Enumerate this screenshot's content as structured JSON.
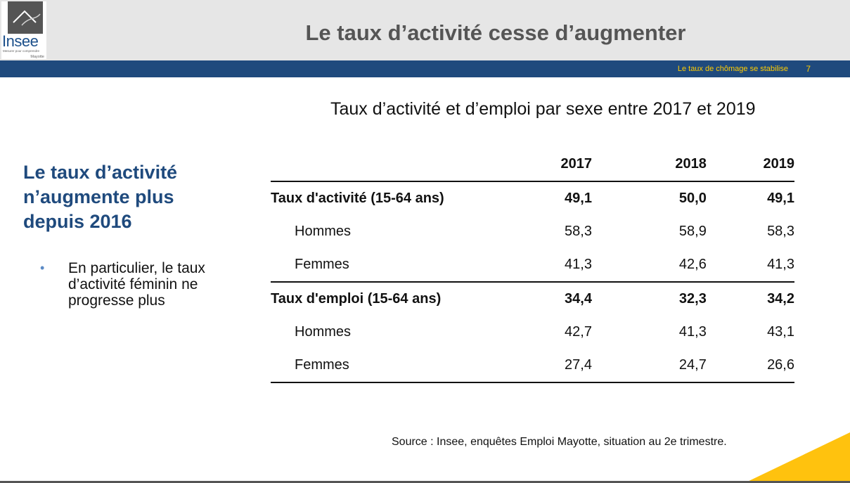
{
  "header": {
    "logo_text": "Insee",
    "logo_tagline": "Mesurer pour comprendre",
    "logo_region": "Mayotte",
    "title": "Le taux d’activité cesse d’augmenter"
  },
  "nav": {
    "section": "Le taux de chômage se stabilise",
    "page_number": "7"
  },
  "left": {
    "heading": "Le taux d’activité n’augmente plus depuis 2016",
    "bullet": "En particulier, le taux d’activité féminin ne progresse plus"
  },
  "table": {
    "title": "Taux d’activité et d’emploi par sexe entre 2017 et 2019",
    "columns": [
      "2017",
      "2018",
      "2019"
    ],
    "rows": [
      {
        "label": "Taux d'activité (15-64 ans)",
        "values": [
          "49,1",
          "50,0",
          "49,1"
        ]
      },
      {
        "label": "Hommes",
        "values": [
          "58,3",
          "58,9",
          "58,3"
        ]
      },
      {
        "label": "Femmes",
        "values": [
          "41,3",
          "42,6",
          "41,3"
        ]
      },
      {
        "label": "Taux d'emploi (15-64 ans)",
        "values": [
          "34,4",
          "32,3",
          "34,2"
        ]
      },
      {
        "label": "Hommes",
        "values": [
          "42,7",
          "41,3",
          "43,1"
        ]
      },
      {
        "label": "Femmes",
        "values": [
          "27,4",
          "24,7",
          "26,6"
        ]
      }
    ]
  },
  "source": "Source : Insee, enquêtes Emploi Mayotte, situation au 2e trimestre.",
  "colors": {
    "brand_blue": "#1f4a7d",
    "accent_yellow": "#ffc20e",
    "header_gray": "#e6e6e6"
  }
}
